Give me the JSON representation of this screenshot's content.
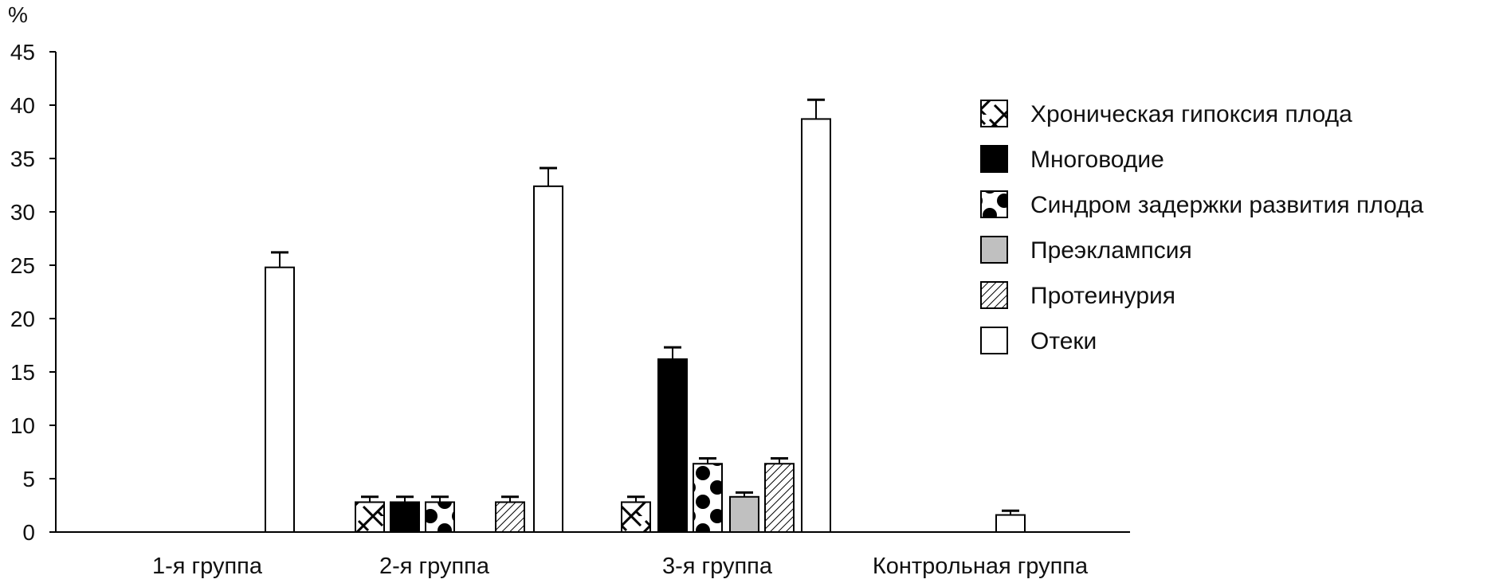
{
  "chart_data": {
    "type": "bar",
    "y_unit_label": "%",
    "ylim": [
      0,
      45
    ],
    "y_ticks": [
      0,
      5,
      10,
      15,
      20,
      25,
      30,
      35,
      40,
      45
    ],
    "grid": false,
    "legend_position": "right",
    "categories": [
      "1-я группа",
      "2-я группа",
      "3-я группа",
      "Контрольная группа"
    ],
    "series": [
      {
        "name": "Хроническая гипоксия плода",
        "pattern": "brick",
        "values": [
          null,
          2.8,
          2.8,
          null
        ],
        "errors": [
          null,
          0.5,
          0.5,
          null
        ]
      },
      {
        "name": "Многоводие",
        "pattern": "solid-black",
        "values": [
          null,
          2.8,
          16.2,
          null
        ],
        "errors": [
          null,
          0.5,
          1.1,
          null
        ]
      },
      {
        "name": "Синдром задержки развития плода",
        "pattern": "dots",
        "values": [
          null,
          2.8,
          6.4,
          null
        ],
        "errors": [
          null,
          0.5,
          0.5,
          null
        ]
      },
      {
        "name": "Преэклампсия",
        "pattern": "gray",
        "values": [
          null,
          null,
          3.3,
          null
        ],
        "errors": [
          null,
          null,
          0.4,
          null
        ]
      },
      {
        "name": "Протеинурия",
        "pattern": "diagonal",
        "values": [
          null,
          2.8,
          6.4,
          null
        ],
        "errors": [
          null,
          0.5,
          0.5,
          null
        ]
      },
      {
        "name": "Отеки",
        "pattern": "white",
        "values": [
          24.8,
          32.4,
          38.7,
          1.6
        ],
        "errors": [
          1.4,
          1.7,
          1.8,
          0.4
        ]
      }
    ]
  }
}
